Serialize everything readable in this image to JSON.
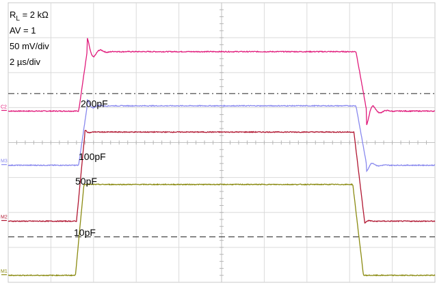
{
  "chart_data": {
    "type": "line",
    "title": "",
    "xlabel": "",
    "ylabel": "",
    "grid": true,
    "grid_divisions": {
      "x": 10,
      "y": 8
    },
    "xlim": [
      0,
      20
    ],
    "x_unit": "µs",
    "x_scale_per_div": 2,
    "y_scale_per_div": 50,
    "y_unit": "mV",
    "annotations": {
      "rl_prefix": "R",
      "rl_sub": "L",
      "rl_value": " = 2 kΩ",
      "av": "AV = 1",
      "volts_div": "50 mV/div",
      "time_div": "2 µs/div"
    },
    "channel_markers": [
      "C2",
      "M3",
      "M2",
      "M1"
    ],
    "series": [
      {
        "name": "200pF",
        "color": "#e0197a",
        "marker": "C2",
        "rise_start_us": 3.3,
        "rise_end_us": 3.7,
        "fall_start_us": 16.3,
        "fall_end_us": 16.8,
        "baseline_div": 4.9,
        "high_div": 6.6,
        "overshoot_div": 0.4,
        "ring_decay_us": 0.3,
        "ring_period_us": 0.65,
        "ref_level_div": 5.4,
        "ref_style": "dash-dot"
      },
      {
        "name": "100pF",
        "color": "#8888ee",
        "marker": "M3",
        "rise_start_us": 3.3,
        "rise_end_us": 3.7,
        "fall_start_us": 16.3,
        "fall_end_us": 16.8,
        "baseline_div": 3.35,
        "high_div": 5.05,
        "overshoot_div": 0.18,
        "ring_decay_us": 0.25,
        "ring_period_us": 0.6
      },
      {
        "name": "50pF",
        "color": "#b01530",
        "marker": "M2",
        "rise_start_us": 3.2,
        "rise_end_us": 3.6,
        "fall_start_us": 16.2,
        "fall_end_us": 16.7,
        "baseline_div": 1.75,
        "high_div": 4.3,
        "overshoot_div": 0.05,
        "ring_decay_us": 0.2,
        "ring_period_us": 0.5
      },
      {
        "name": "10pF",
        "color": "#8a8a10",
        "marker": "M1",
        "rise_start_us": 3.15,
        "rise_end_us": 3.55,
        "fall_start_us": 16.15,
        "fall_end_us": 16.65,
        "baseline_div": 0.2,
        "high_div": 2.8,
        "overshoot_div": 0.0,
        "ring_decay_us": 0.2,
        "ring_period_us": 0.5,
        "ref_level_div": 1.3,
        "ref_style": "dash"
      }
    ]
  }
}
